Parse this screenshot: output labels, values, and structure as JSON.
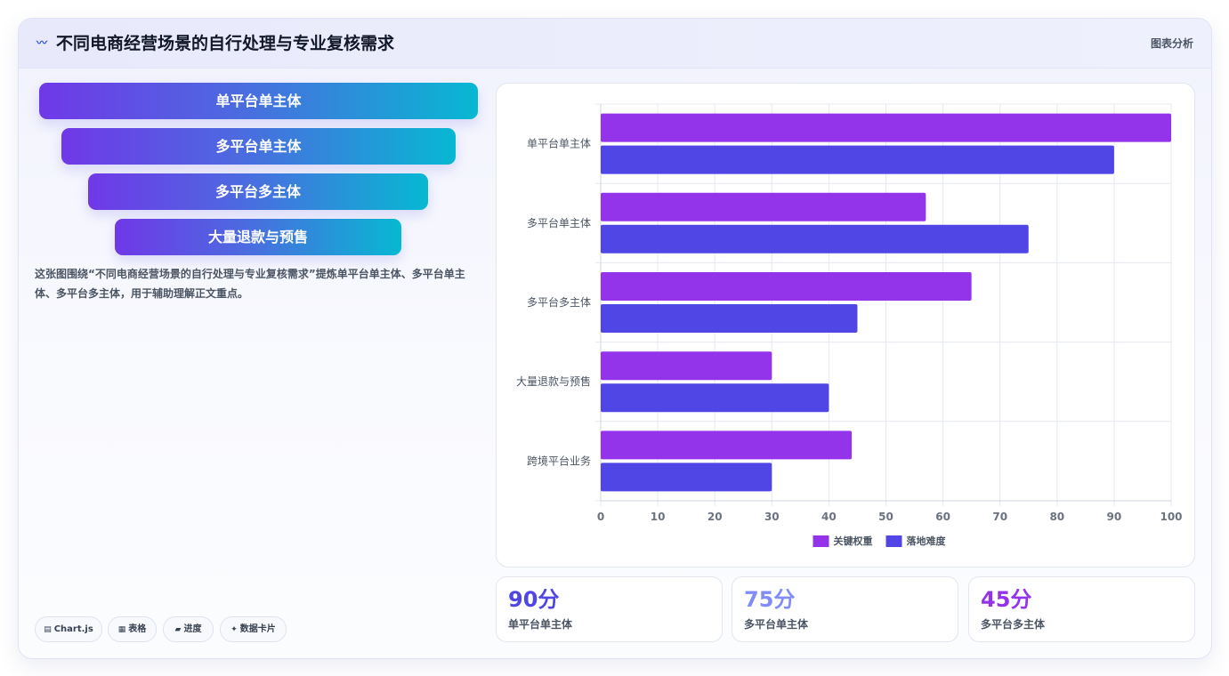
{
  "header": {
    "title_icon": "〰",
    "title": "不同电商经营场景的自行处理与专业复核需求",
    "tag": "图表分析"
  },
  "funnel": {
    "steps": [
      "单平台单主体",
      "多平台单主体",
      "多平台多主体",
      "大量退款与预售"
    ]
  },
  "description": "这张图围绕“不同电商经营场景的自行处理与专业复核需求”提炼单平台单主体、多平台单主体、多平台多主体，用于辅助理解正文重点。",
  "pills": [
    {
      "icon": "▤",
      "label": "Chart.js"
    },
    {
      "icon": "▦",
      "label": "表格"
    },
    {
      "icon": "▰",
      "label": "进度"
    },
    {
      "icon": "✦",
      "label": "数据卡片"
    }
  ],
  "chart_data": {
    "type": "bar",
    "orientation": "horizontal",
    "categories": [
      "单平台单主体",
      "多平台单主体",
      "多平台多主体",
      "大量退款与预售",
      "跨境平台业务"
    ],
    "series": [
      {
        "name": "关键权重",
        "color": "#9333ea",
        "values": [
          100,
          57,
          65,
          30,
          44
        ]
      },
      {
        "name": "落地难度",
        "color": "#4f46e5",
        "values": [
          90,
          75,
          45,
          40,
          30
        ]
      }
    ],
    "xlim": [
      0,
      100
    ],
    "xticks": [
      0,
      10,
      20,
      30,
      40,
      50,
      60,
      70,
      80,
      90,
      100
    ],
    "grid": true,
    "legend": "bottom"
  },
  "stats": [
    {
      "value": "90分",
      "label": "单平台单主体",
      "color": "#4f46e5"
    },
    {
      "value": "75分",
      "label": "多平台单主体",
      "color": "#818cf8"
    },
    {
      "value": "45分",
      "label": "多平台多主体",
      "color": "#9333ea"
    }
  ]
}
